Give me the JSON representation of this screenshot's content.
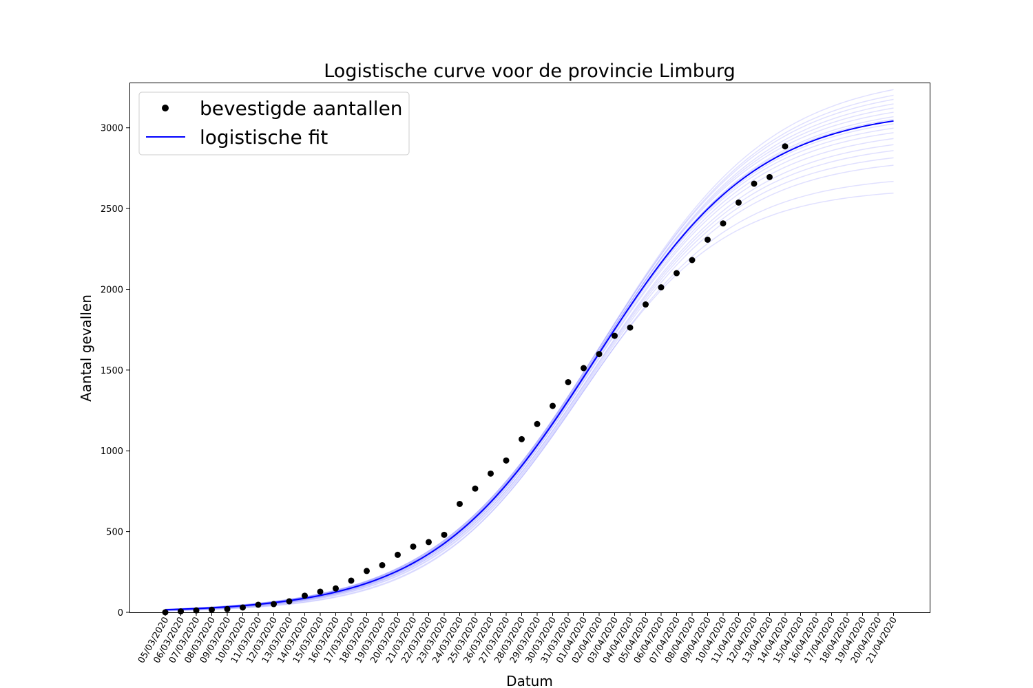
{
  "chart_data": {
    "type": "scatter",
    "title": "Logistische curve voor de provincie Limburg",
    "xlabel": "Datum",
    "ylabel": "Aantal gevallen",
    "ylim": [
      0,
      3280
    ],
    "yticks": [
      0,
      500,
      1000,
      1500,
      2000,
      2500,
      3000
    ],
    "grid": false,
    "legend_position": "top-left",
    "categories": [
      "05/03/2020",
      "06/03/2020",
      "07/03/2020",
      "08/03/2020",
      "09/03/2020",
      "10/03/2020",
      "11/03/2020",
      "12/03/2020",
      "13/03/2020",
      "14/03/2020",
      "15/03/2020",
      "16/03/2020",
      "17/03/2020",
      "18/03/2020",
      "19/03/2020",
      "20/03/2020",
      "21/03/2020",
      "22/03/2020",
      "23/03/2020",
      "24/03/2020",
      "25/03/2020",
      "26/03/2020",
      "27/03/2020",
      "28/03/2020",
      "29/03/2020",
      "30/03/2020",
      "31/03/2020",
      "01/04/2020",
      "02/04/2020",
      "03/04/2020",
      "04/04/2020",
      "05/04/2020",
      "06/04/2020",
      "07/04/2020",
      "08/04/2020",
      "09/04/2020",
      "10/04/2020",
      "11/04/2020",
      "12/04/2020",
      "13/04/2020",
      "14/04/2020",
      "15/04/2020",
      "16/04/2020",
      "17/04/2020",
      "18/04/2020",
      "19/04/2020",
      "20/04/2020",
      "21/04/2020"
    ],
    "series": [
      {
        "name": "bevestigde aantallen",
        "marker": "dot",
        "color": "#000000",
        "values": [
          0,
          6,
          12,
          16,
          20,
          30,
          47,
          51,
          68,
          103,
          128,
          148,
          196,
          256,
          292,
          356,
          407,
          435,
          480,
          671,
          766,
          859,
          940,
          1072,
          1166,
          1278,
          1425,
          1512,
          1599,
          1712,
          1763,
          1906,
          2012,
          2100,
          2181,
          2307,
          2408,
          2537,
          2654,
          2695,
          2885
        ]
      },
      {
        "name": "logistische fit",
        "line": "solid",
        "color": "#0000ff",
        "model": "logistic",
        "K": 3120,
        "midpoint_index": 27.7,
        "rate": 0.19
      }
    ],
    "ensemble": {
      "color": "#0000ff",
      "opacity": 0.12,
      "curves": [
        {
          "K": 2630,
          "r": 0.212,
          "m": 26.6
        },
        {
          "K": 2710,
          "r": 0.207,
          "m": 26.9
        },
        {
          "K": 2820,
          "r": 0.201,
          "m": 27.2
        },
        {
          "K": 2870,
          "r": 0.199,
          "m": 27.3
        },
        {
          "K": 2920,
          "r": 0.196,
          "m": 27.4
        },
        {
          "K": 2960,
          "r": 0.195,
          "m": 27.5
        },
        {
          "K": 3000,
          "r": 0.194,
          "m": 27.5
        },
        {
          "K": 3040,
          "r": 0.193,
          "m": 27.6
        },
        {
          "K": 3070,
          "r": 0.192,
          "m": 27.6
        },
        {
          "K": 3100,
          "r": 0.191,
          "m": 27.7
        },
        {
          "K": 3130,
          "r": 0.19,
          "m": 27.7
        },
        {
          "K": 3150,
          "r": 0.189,
          "m": 27.8
        },
        {
          "K": 3180,
          "r": 0.188,
          "m": 27.8
        },
        {
          "K": 3210,
          "r": 0.187,
          "m": 27.9
        },
        {
          "K": 3240,
          "r": 0.186,
          "m": 28.0
        },
        {
          "K": 3270,
          "r": 0.185,
          "m": 28.0
        },
        {
          "K": 3300,
          "r": 0.184,
          "m": 28.1
        },
        {
          "K": 3340,
          "r": 0.183,
          "m": 28.2
        }
      ]
    }
  }
}
